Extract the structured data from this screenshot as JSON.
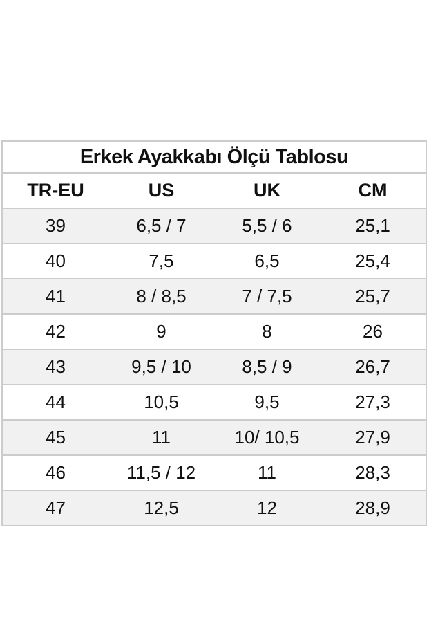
{
  "chart_data": {
    "type": "table",
    "title": "Erkek Ayakkabı Ölçü Tablosu",
    "columns": [
      "TR-EU",
      "US",
      "UK",
      "CM"
    ],
    "rows": [
      [
        "39",
        "6,5 / 7",
        "5,5 / 6",
        "25,1"
      ],
      [
        "40",
        "7,5",
        "6,5",
        "25,4"
      ],
      [
        "41",
        "8 / 8,5",
        "7 / 7,5",
        "25,7"
      ],
      [
        "42",
        "9",
        "8",
        "26"
      ],
      [
        "43",
        "9,5 / 10",
        "8,5 / 9",
        "26,7"
      ],
      [
        "44",
        "10,5",
        "9,5",
        "27,3"
      ],
      [
        "45",
        "11",
        "10/ 10,5",
        "27,9"
      ],
      [
        "46",
        "11,5 / 12",
        "11",
        "28,3"
      ],
      [
        "47",
        "12,5",
        "12",
        "28,9"
      ]
    ],
    "layout": {
      "shaded_row_indices": [
        0,
        2,
        4,
        6,
        8
      ],
      "grid": "horizontal-separators-only"
    }
  },
  "colors": {
    "background": "#ffffff",
    "row_shaded": "#f1f1f1",
    "border": "#cccccc",
    "text": "#111111"
  }
}
